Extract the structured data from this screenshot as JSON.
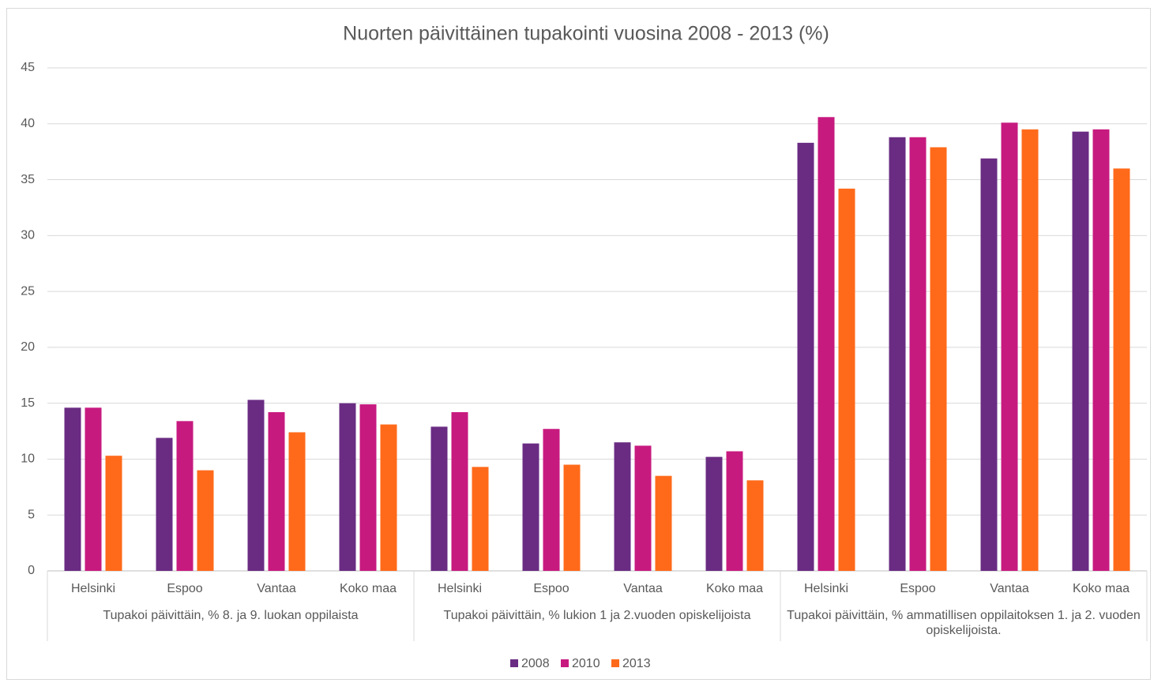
{
  "chart_data": {
    "type": "bar",
    "title": "Nuorten päivittäinen tupakointi vuosina 2008 - 2013 (%)",
    "categories": [
      "Helsinki",
      "Espoo",
      "Vantaa",
      "Koko maa",
      "Helsinki",
      "Espoo",
      "Vantaa",
      "Koko maa",
      "Helsinki",
      "Espoo",
      "Vantaa",
      "Koko maa"
    ],
    "groups": [
      "Tupakoi päivittäin, % 8. ja 9. luokan oppilaista",
      "Tupakoi päivittäin, % lukion 1 ja 2.vuoden opiskelijoista",
      "Tupakoi päivittäin, % ammatillisen oppilaitoksen 1. ja 2. vuoden opiskelijoista."
    ],
    "series": [
      {
        "name": "2008",
        "color": "#6a2c83",
        "values": [
          14.6,
          11.9,
          15.3,
          15.0,
          12.9,
          11.4,
          11.5,
          10.2,
          38.3,
          38.8,
          36.9,
          39.3
        ]
      },
      {
        "name": "2010",
        "color": "#c71a7f",
        "values": [
          14.6,
          13.4,
          14.2,
          14.9,
          14.2,
          12.7,
          11.2,
          10.7,
          40.6,
          38.8,
          40.1,
          39.5
        ]
      },
      {
        "name": "2013",
        "color": "#ff6a1a",
        "values": [
          10.3,
          9.0,
          12.4,
          13.1,
          9.3,
          9.5,
          8.5,
          8.1,
          34.2,
          37.9,
          39.5,
          36.0
        ]
      }
    ],
    "ylim": [
      0,
      45
    ],
    "yticks": [
      0,
      5,
      10,
      15,
      20,
      25,
      30,
      35,
      40,
      45
    ],
    "grid": true,
    "legend": "bottom"
  }
}
